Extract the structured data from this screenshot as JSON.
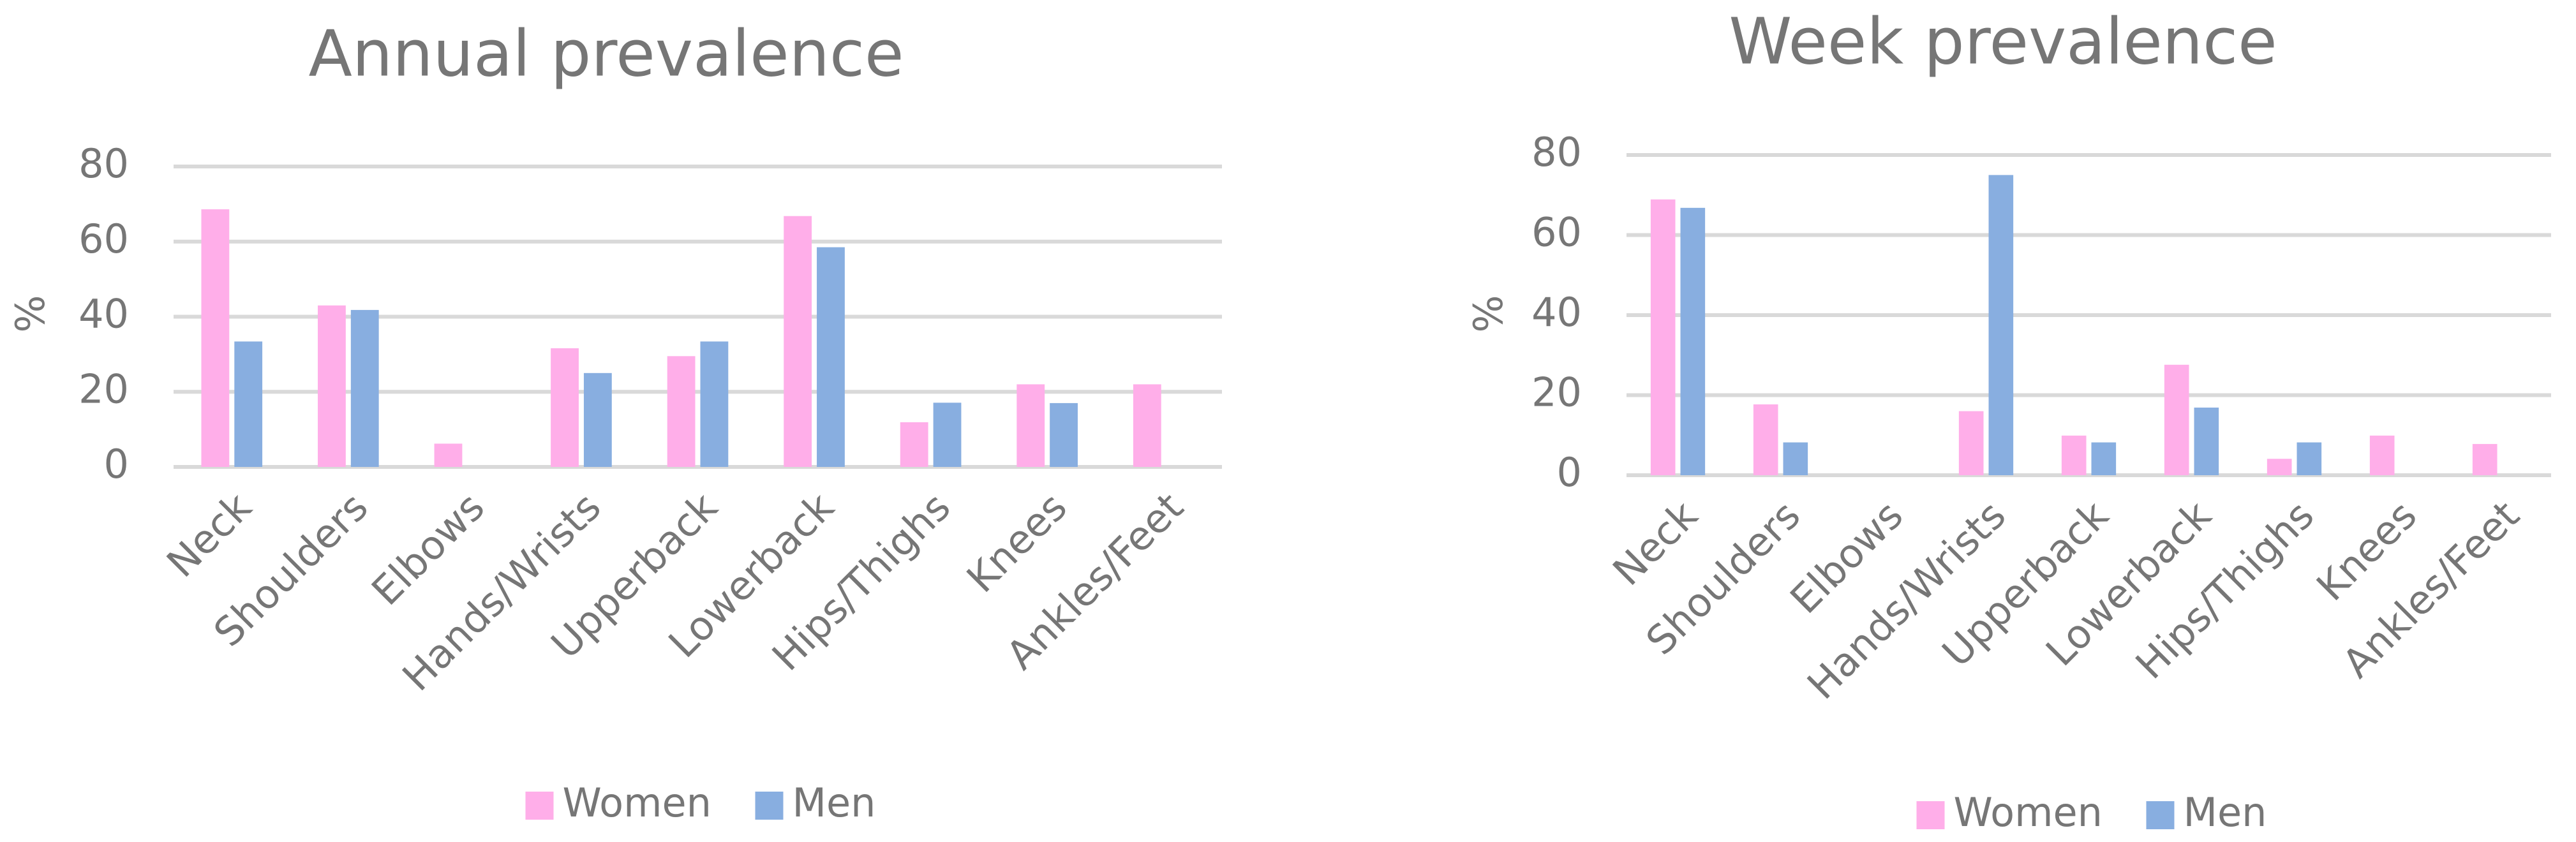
{
  "chart_data": [
    {
      "type": "bar",
      "title": "Annual prevalence",
      "y_label": "%",
      "categories": [
        "Neck",
        "Shoulders",
        "Elbows",
        "Hands/Wrists",
        "Upperback",
        "Lowerback",
        "Hips/Thighs",
        "Knees",
        "Ankles/Feet"
      ],
      "series": [
        {
          "name": "Women",
          "color": "#ffaee9",
          "values": [
            68.6,
            43.0,
            6.2,
            31.6,
            29.5,
            66.8,
            11.9,
            22.0,
            22.0
          ]
        },
        {
          "name": "Men",
          "color": "#88aee0",
          "values": [
            33.4,
            41.8,
            0,
            25.0,
            33.4,
            58.5,
            17.1,
            17.0,
            0
          ]
        }
      ],
      "ylim": [
        0,
        80
      ],
      "yticks": [
        0,
        20,
        40,
        60,
        80
      ],
      "grid": true
    },
    {
      "type": "bar",
      "title": "Week prevalence",
      "y_label": "%",
      "categories": [
        "Neck",
        "Shoulders",
        "Elbows",
        "Hands/Wrists",
        "Upperback",
        "Lowerback",
        "Hips/Thighs",
        "Knees",
        "Ankles/Feet"
      ],
      "series": [
        {
          "name": "Women",
          "color": "#ffaee9",
          "values": [
            68.9,
            17.7,
            0,
            16.0,
            9.9,
            27.6,
            4.1,
            9.9,
            7.8
          ]
        },
        {
          "name": "Men",
          "color": "#88aee0",
          "values": [
            66.8,
            8.2,
            0,
            75.0,
            8.2,
            16.9,
            8.2,
            0,
            0
          ]
        }
      ],
      "ylim": [
        0,
        80
      ],
      "yticks": [
        0,
        20,
        40,
        60,
        80
      ],
      "grid": true
    }
  ]
}
